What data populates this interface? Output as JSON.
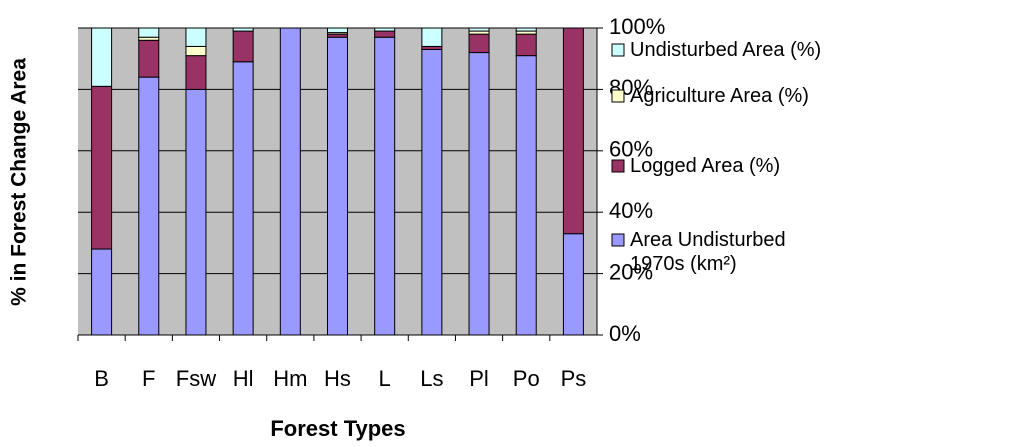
{
  "chart_data": {
    "type": "stacked_bar_100",
    "x_label": "Forest Types",
    "y_label": "% in Forest Change Area",
    "categories": [
      "B",
      "F",
      "Fsw",
      "Hl",
      "Hm",
      "Hs",
      "L",
      "Ls",
      "Pl",
      "Po",
      "Ps"
    ],
    "series": [
      {
        "name": "Area Undisturbed 1970s (km²)",
        "color": "#9999ff",
        "values": [
          28,
          84,
          80,
          89,
          100,
          97,
          97,
          93,
          92,
          91,
          33
        ]
      },
      {
        "name": "Logged Area (%)",
        "color": "#993366",
        "values": [
          53,
          12,
          11,
          10,
          0,
          1,
          2,
          1,
          6,
          7,
          67
        ]
      },
      {
        "name": "Agriculture Area (%)",
        "color": "#ffffcc",
        "values": [
          0,
          1,
          3,
          0,
          0,
          0.5,
          0,
          0,
          1,
          1,
          0
        ]
      },
      {
        "name": "Undisturbed Area (%)",
        "color": "#ccffff",
        "values": [
          19,
          3,
          6,
          1,
          0,
          1.5,
          1,
          6,
          1,
          1,
          0
        ]
      }
    ],
    "ylim": [
      0,
      100
    ],
    "yticks": [
      {
        "value": 0,
        "label": "0%"
      },
      {
        "value": 20,
        "label": "20%"
      },
      {
        "value": 40,
        "label": "40%"
      },
      {
        "value": 60,
        "label": "60%"
      },
      {
        "value": 80,
        "label": "80%"
      },
      {
        "value": 100,
        "label": "100%"
      }
    ],
    "grid": true,
    "legend": "right"
  }
}
